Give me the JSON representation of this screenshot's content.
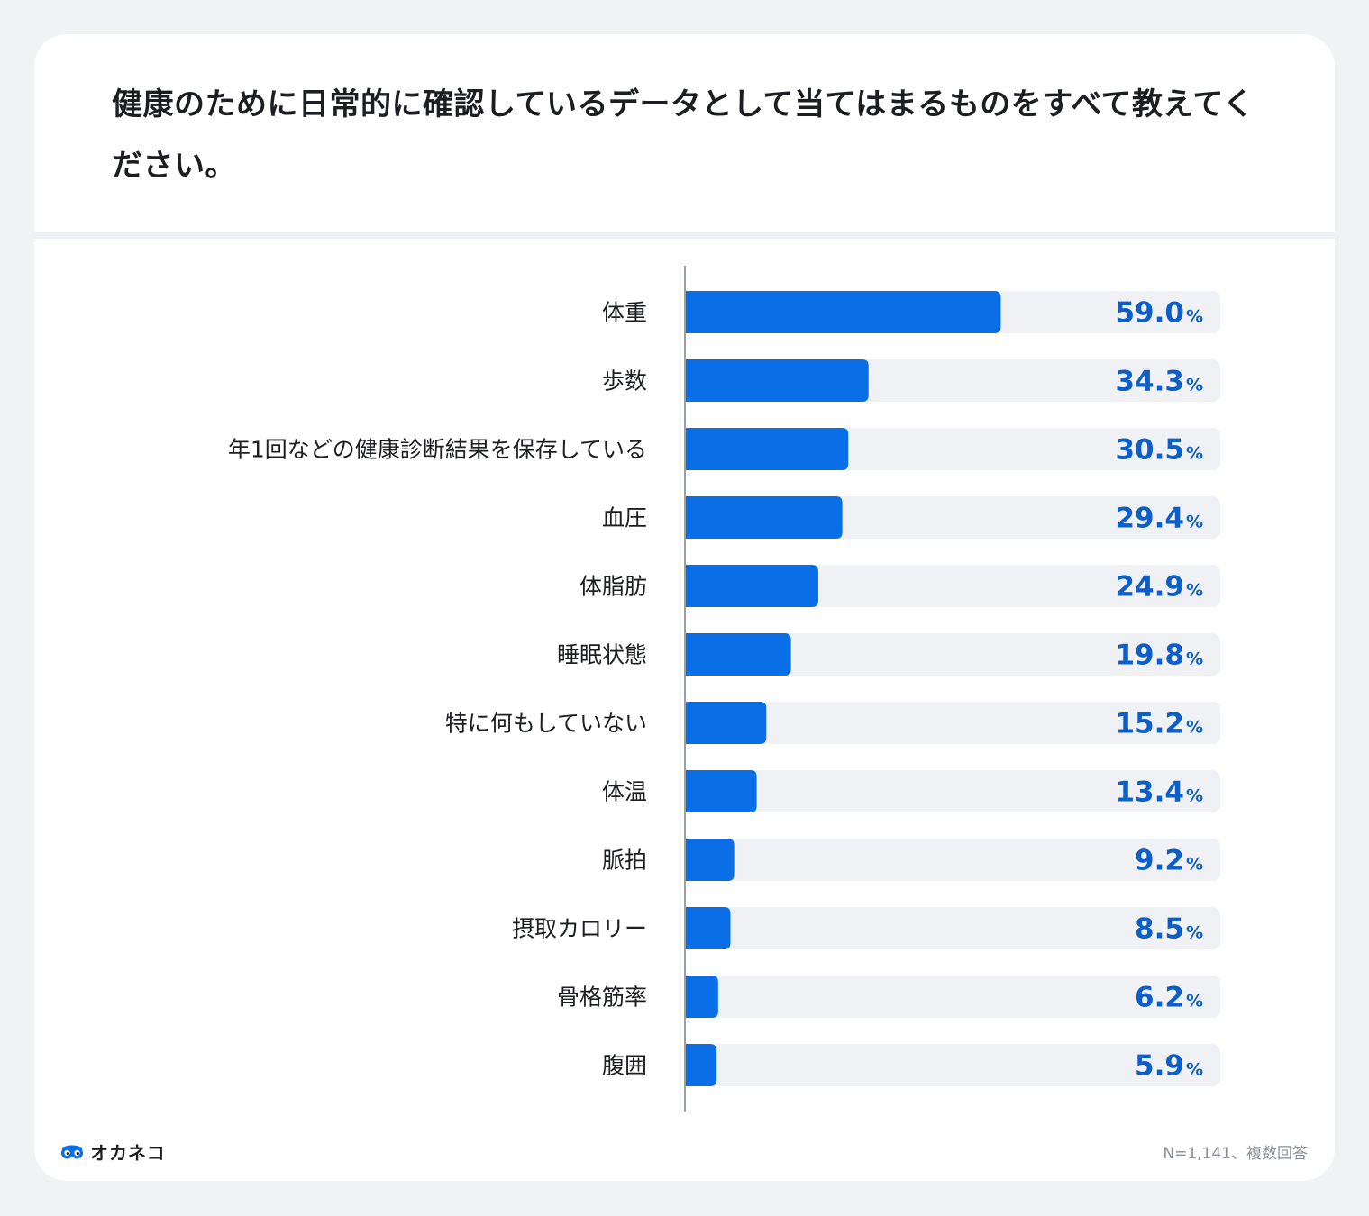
{
  "question": "健康のために日常的に確認しているデータとして当てはまるものをすべて教えてください。",
  "brand": {
    "name": "オカネコ",
    "icon": "owl-eyes-icon"
  },
  "footnote": "N=1,141、複数回答",
  "colors": {
    "bar": "#0a6fe6",
    "track": "#eff1f4",
    "value_text": "#0c5fc8",
    "axis": "#9aa0a6"
  },
  "chart_data": {
    "type": "bar",
    "orientation": "horizontal",
    "title": "健康のために日常的に確認しているデータとして当てはまるものをすべて教えてください。",
    "categories": [
      "体重",
      "歩数",
      "年1回などの健康診断結果を保存している",
      "血圧",
      "体脂肪",
      "睡眠状態",
      "特に何もしていない",
      "体温",
      "脈拍",
      "摂取カロリー",
      "骨格筋率",
      "腹囲"
    ],
    "values": [
      59.0,
      34.3,
      30.5,
      29.4,
      24.9,
      19.8,
      15.2,
      13.4,
      9.2,
      8.5,
      6.2,
      5.9
    ],
    "value_labels": [
      "59.0",
      "34.3",
      "30.5",
      "29.4",
      "24.9",
      "19.8",
      "15.2",
      "13.4",
      "9.2",
      "8.5",
      "6.2",
      "5.9"
    ],
    "unit": "%",
    "xlim": [
      0,
      100
    ],
    "xlabel": "",
    "ylabel": "",
    "grid": false
  }
}
